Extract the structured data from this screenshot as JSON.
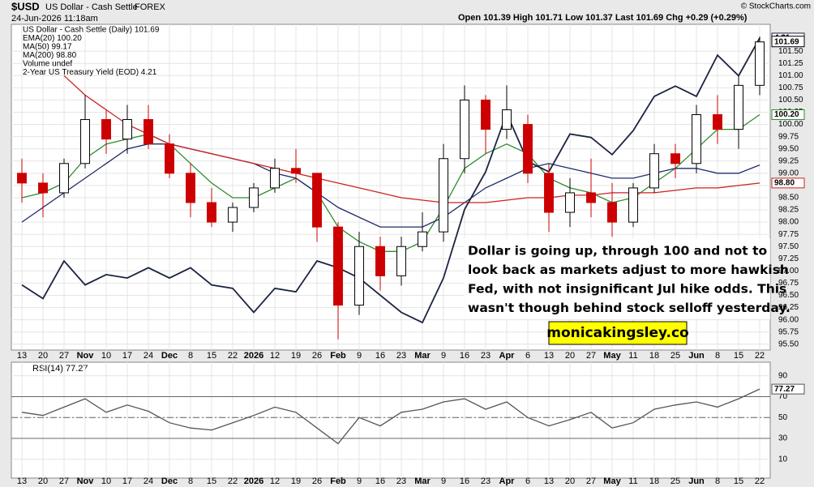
{
  "header": {
    "symbol": "$USD",
    "name": "US Dollar - Cash Settle",
    "exchange": "FOREX",
    "date": "24-Jun-2026 11:18am",
    "quote": "Open 101.39  High 101.71  Low 101.37  Last 101.69  Chg +0.29 (+0.29%)",
    "credit": "© StockCharts.com"
  },
  "annotation": {
    "lines": [
      "Dollar is going up, through 100 and not to",
      "look back as markets adjust to more hawkish",
      "Fed, with not insignificant Jul hike odds. This",
      "wasn't though behind stock selloff yesterday."
    ],
    "badge": "monicakingsley.co"
  },
  "chart_data": [
    {
      "type": "candlestick",
      "categories": [
        "13",
        "20",
        "27",
        "Nov",
        "10",
        "17",
        "24",
        "Dec",
        "8",
        "15",
        "22",
        "2026",
        "12",
        "19",
        "26",
        "Feb",
        "9",
        "16",
        "23",
        "Mar",
        "9",
        "16",
        "23",
        "Apr",
        "6",
        "13",
        "20",
        "27",
        "May",
        "11",
        "18",
        "25",
        "Jun",
        "8",
        "15",
        "22"
      ],
      "name": "US Dollar - Cash Settle (Daily) 101.69",
      "up_color": "#000000",
      "down_color": "#cc0000",
      "open": [
        99.0,
        98.8,
        98.6,
        99.2,
        100.1,
        99.7,
        100.1,
        99.6,
        99.0,
        98.4,
        98.0,
        98.3,
        98.7,
        99.1,
        99.0,
        97.9,
        96.3,
        97.5,
        96.9,
        97.5,
        97.8,
        99.3,
        100.5,
        99.9,
        100.0,
        99.0,
        98.2,
        98.6,
        98.4,
        98.0,
        98.7,
        99.4,
        99.2,
        100.2,
        99.9,
        100.8
      ],
      "high": [
        99.3,
        99.0,
        99.3,
        100.6,
        100.3,
        100.4,
        100.4,
        99.8,
        99.2,
        98.7,
        98.4,
        98.8,
        99.3,
        99.5,
        99.0,
        98.0,
        97.8,
        97.7,
        97.7,
        98.2,
        99.6,
        100.8,
        100.6,
        100.8,
        100.2,
        99.2,
        98.9,
        99.3,
        98.8,
        98.8,
        99.6,
        99.6,
        100.4,
        100.6,
        101.0,
        101.8
      ],
      "low": [
        98.4,
        98.1,
        98.5,
        99.1,
        99.4,
        99.4,
        99.5,
        98.9,
        98.1,
        97.9,
        97.8,
        98.2,
        98.6,
        98.8,
        97.6,
        95.6,
        96.1,
        96.6,
        96.7,
        97.4,
        97.6,
        99.0,
        99.4,
        99.7,
        98.8,
        97.8,
        97.9,
        98.1,
        97.7,
        97.9,
        98.6,
        98.9,
        99.0,
        99.6,
        99.5,
        100.6
      ],
      "close": [
        98.8,
        98.6,
        99.2,
        100.1,
        99.7,
        100.1,
        99.6,
        99.0,
        98.4,
        98.0,
        98.3,
        98.7,
        99.1,
        99.0,
        97.9,
        96.3,
        97.5,
        96.9,
        97.5,
        97.8,
        99.3,
        100.5,
        99.9,
        100.3,
        99.0,
        98.2,
        98.6,
        98.4,
        98.0,
        98.7,
        99.4,
        99.2,
        100.2,
        99.9,
        100.8,
        101.69
      ],
      "series": [
        {
          "name": "EMA(20) 100.20",
          "color": "#2e8b2e",
          "values": [
            98.5,
            98.6,
            98.8,
            99.3,
            99.6,
            99.7,
            99.8,
            99.6,
            99.2,
            98.8,
            98.5,
            98.5,
            98.7,
            98.9,
            98.6,
            97.9,
            97.6,
            97.4,
            97.4,
            97.6,
            98.3,
            99.1,
            99.4,
            99.6,
            99.4,
            98.9,
            98.7,
            98.6,
            98.4,
            98.5,
            98.8,
            99.1,
            99.5,
            99.9,
            99.9,
            100.2
          ],
          "value_labels": [
            null,
            null,
            null,
            null,
            null,
            null,
            null,
            null,
            null,
            null,
            null,
            null,
            null,
            null,
            null,
            null,
            null,
            null,
            null,
            null,
            null,
            null,
            null,
            null,
            null,
            null,
            null,
            null,
            null,
            null,
            null,
            null,
            null,
            null,
            null,
            "100.20"
          ]
        },
        {
          "name": "MA(50) 99.17",
          "color": "#1f2a6b",
          "values": [
            98.0,
            98.3,
            98.6,
            98.9,
            99.2,
            99.5,
            99.6,
            99.6,
            99.5,
            99.4,
            99.3,
            99.2,
            99.0,
            98.9,
            98.6,
            98.3,
            98.1,
            97.9,
            97.9,
            97.9,
            98.1,
            98.4,
            98.7,
            98.9,
            99.1,
            99.2,
            99.1,
            99.0,
            98.9,
            98.9,
            99.0,
            99.1,
            99.1,
            99.0,
            99.0,
            99.17
          ]
        },
        {
          "name": "MA(200) 98.80",
          "color": "#cc2222",
          "values": [
            null,
            null,
            101.0,
            100.6,
            100.3,
            100.0,
            99.8,
            99.6,
            99.5,
            99.4,
            99.3,
            99.2,
            99.1,
            99.0,
            98.9,
            98.8,
            98.7,
            98.6,
            98.5,
            98.45,
            98.4,
            98.4,
            98.4,
            98.45,
            98.5,
            98.5,
            98.55,
            98.55,
            98.6,
            98.6,
            98.6,
            98.65,
            98.7,
            98.7,
            98.75,
            98.8
          ],
          "value_labels": [
            null,
            null,
            null,
            null,
            null,
            null,
            null,
            null,
            null,
            null,
            null,
            null,
            null,
            null,
            null,
            null,
            null,
            null,
            null,
            null,
            null,
            null,
            null,
            null,
            null,
            null,
            null,
            null,
            null,
            null,
            null,
            null,
            null,
            null,
            null,
            "98.80"
          ]
        },
        {
          "name": "2-Year US Treasury Yield (EOD) 4.21",
          "color": "#1a2340",
          "axis": "y2",
          "values": [
            3.49,
            3.45,
            3.56,
            3.49,
            3.52,
            3.51,
            3.54,
            3.51,
            3.54,
            3.49,
            3.48,
            3.41,
            3.48,
            3.47,
            3.56,
            3.54,
            3.51,
            3.46,
            3.41,
            3.38,
            3.51,
            3.71,
            3.82,
            3.99,
            3.85,
            3.82,
            3.93,
            3.92,
            3.87,
            3.94,
            4.04,
            4.07,
            4.04,
            4.16,
            4.1,
            4.21
          ]
        }
      ],
      "volume_label": "Volume undef",
      "ylim": [
        95.38,
        102.05
      ],
      "yticks": [
        {
          "value": 95.5,
          "label": "95.50"
        },
        {
          "value": 95.75,
          "label": "95.75"
        },
        {
          "value": 96,
          "label": "96.00"
        },
        {
          "value": 96.25,
          "label": "96.25"
        },
        {
          "value": 96.5,
          "label": "96.50"
        },
        {
          "value": 96.75,
          "label": "96.75"
        },
        {
          "value": 97,
          "label": "97.00"
        },
        {
          "value": 97.25,
          "label": "97.25"
        },
        {
          "value": 97.5,
          "label": "97.50"
        },
        {
          "value": 97.75,
          "label": "97.75"
        },
        {
          "value": 98,
          "label": "98.00"
        },
        {
          "value": 98.25,
          "label": "98.25"
        },
        {
          "value": 98.5,
          "label": "98.50"
        },
        {
          "value": 98.75,
          "label": "98.75"
        },
        {
          "value": 99,
          "label": "99.00"
        },
        {
          "value": 99.25,
          "label": "99.25"
        },
        {
          "value": 99.5,
          "label": "99.50"
        },
        {
          "value": 99.75,
          "label": "99.75"
        },
        {
          "value": 100,
          "label": "100.00"
        },
        {
          "value": 100.25,
          "label": "100.25"
        },
        {
          "value": 100.5,
          "label": "100.50"
        },
        {
          "value": 100.75,
          "label": "100.75"
        },
        {
          "value": 101,
          "label": "101.00"
        },
        {
          "value": 101.25,
          "label": "101.25"
        },
        {
          "value": 101.5,
          "label": "101.50"
        }
      ],
      "y2lim": [
        3.3,
        4.25
      ],
      "grid": true
    },
    {
      "type": "line",
      "title": "RSI(14) 77.27",
      "categories": [
        "13",
        "20",
        "27",
        "Nov",
        "10",
        "17",
        "24",
        "Dec",
        "8",
        "15",
        "22",
        "2026",
        "12",
        "19",
        "26",
        "Feb",
        "9",
        "16",
        "23",
        "Mar",
        "9",
        "16",
        "23",
        "Apr",
        "6",
        "13",
        "20",
        "27",
        "May",
        "11",
        "18",
        "25",
        "Jun",
        "8",
        "15",
        "22"
      ],
      "series": [
        {
          "name": "RSI(14)",
          "color": "#555555",
          "values": [
            55,
            52,
            60,
            68,
            55,
            62,
            56,
            45,
            40,
            38,
            45,
            52,
            60,
            55,
            40,
            25,
            50,
            42,
            55,
            58,
            65,
            68,
            58,
            65,
            50,
            42,
            48,
            55,
            40,
            45,
            58,
            62,
            65,
            60,
            68,
            77.27
          ]
        }
      ],
      "ylim": [
        -8,
        103
      ],
      "yticks": [
        10,
        30,
        50,
        70,
        90
      ],
      "bands": [
        30,
        70
      ],
      "midline": 50,
      "grid": true
    }
  ]
}
